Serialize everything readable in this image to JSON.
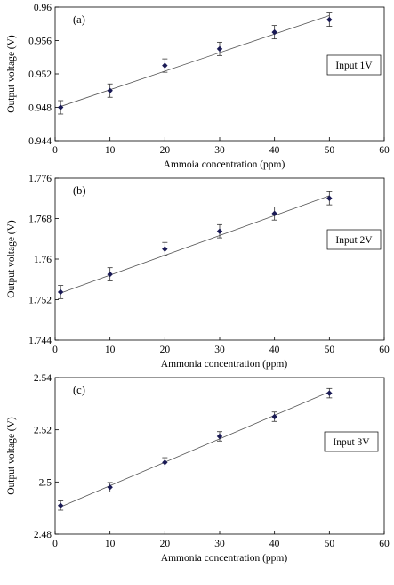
{
  "chart_data": [
    {
      "type": "scatter",
      "panel": "(a)",
      "legend": "Input 1V",
      "xlabel": "Ammoia concentration (ppm)",
      "ylabel": "Output voltage (V)",
      "xlim": [
        0,
        60
      ],
      "ylim": [
        0.944,
        0.96
      ],
      "xticks": [
        "0",
        "10",
        "20",
        "30",
        "40",
        "50",
        "60"
      ],
      "yticks": [
        "0.944",
        "0.948",
        "0.952",
        "0.956",
        "0.96"
      ],
      "x": [
        1,
        10,
        20,
        30,
        40,
        50
      ],
      "y": [
        0.948,
        0.95,
        0.953,
        0.955,
        0.957,
        0.9585
      ],
      "err": [
        0.0008,
        0.0008,
        0.0008,
        0.0008,
        0.0008,
        0.0008
      ],
      "fit": [
        [
          1,
          0.9481
        ],
        [
          50,
          0.959
        ]
      ]
    },
    {
      "type": "scatter",
      "panel": "(b)",
      "legend": "Input 2V",
      "xlabel": "Ammonia concentration (ppm)",
      "ylabel": "Output voltage  (V)",
      "xlim": [
        0,
        60
      ],
      "ylim": [
        1.744,
        1.776
      ],
      "xticks": [
        "0",
        "10",
        "20",
        "30",
        "40",
        "50",
        "60"
      ],
      "yticks": [
        "1.744",
        "1.752",
        "1.76",
        "1.768",
        "1.776"
      ],
      "x": [
        1,
        10,
        20,
        30,
        40,
        50
      ],
      "y": [
        1.7535,
        1.757,
        1.762,
        1.7655,
        1.769,
        1.772
      ],
      "err": [
        0.0013,
        0.0013,
        0.0013,
        0.0013,
        0.0013,
        0.0013
      ],
      "fit": [
        [
          1,
          1.7533
        ],
        [
          50,
          1.7725
        ]
      ]
    },
    {
      "type": "scatter",
      "panel": "(c)",
      "legend": "Input 3V",
      "xlabel": "Ammonia concentration (ppm)",
      "ylabel": "Output voltage (V)",
      "xlim": [
        0,
        60
      ],
      "ylim": [
        2.48,
        2.54
      ],
      "xticks": [
        "0",
        "10",
        "20",
        "30",
        "40",
        "50",
        "60"
      ],
      "yticks": [
        "2.48",
        "2.5",
        "2.52",
        "2.54"
      ],
      "x": [
        1,
        10,
        20,
        30,
        40,
        50
      ],
      "y": [
        2.491,
        2.498,
        2.5075,
        2.5175,
        2.525,
        2.534
      ],
      "err": [
        0.0018,
        0.0018,
        0.0018,
        0.0018,
        0.0018,
        0.0018
      ],
      "fit": [
        [
          1,
          2.4905
        ],
        [
          50,
          2.5345
        ]
      ]
    }
  ]
}
